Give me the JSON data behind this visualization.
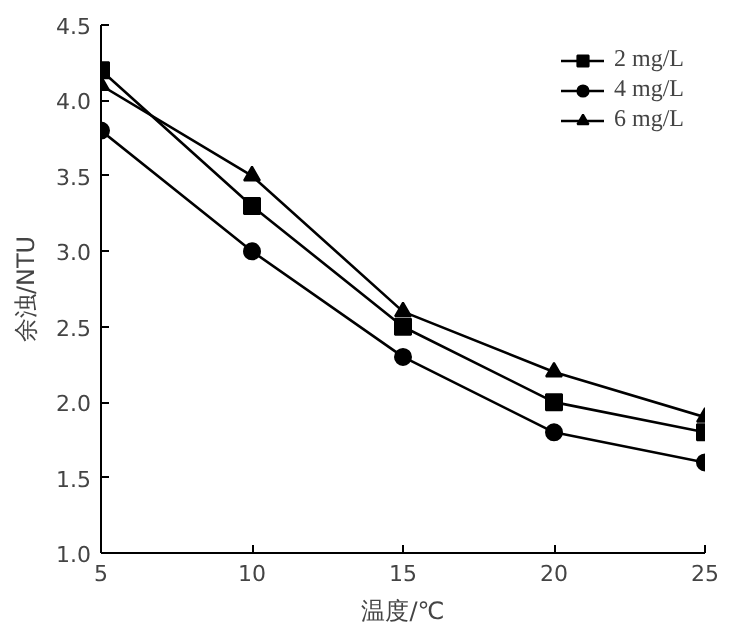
{
  "chart_data": {
    "type": "line",
    "xlabel": "温度/℃",
    "ylabel": "余浊/NTU",
    "x": [
      5,
      10,
      15,
      20,
      25
    ],
    "series": [
      {
        "name": "2 mg/L",
        "color": "#000000",
        "marker": "square",
        "values": [
          4.2,
          3.3,
          2.5,
          2.0,
          1.8
        ]
      },
      {
        "name": "4 mg/L",
        "color": "#000000",
        "marker": "circle",
        "values": [
          3.8,
          3.0,
          2.3,
          1.8,
          1.6
        ]
      },
      {
        "name": "6 mg/L",
        "color": "#000000",
        "marker": "triangle",
        "values": [
          4.1,
          3.5,
          2.6,
          2.2,
          1.9
        ]
      }
    ],
    "xlim": [
      5,
      25
    ],
    "xticks": [
      5,
      10,
      15,
      20,
      25
    ],
    "ylim": [
      1.0,
      4.5
    ],
    "yticks": [
      {
        "value": 1.0,
        "label": "1.0"
      },
      {
        "value": 1.5,
        "label": "1.5"
      },
      {
        "value": 2.0,
        "label": "2.0"
      },
      {
        "value": 2.5,
        "label": "2.5"
      },
      {
        "value": 3.0,
        "label": "3.0"
      },
      {
        "value": 3.5,
        "label": "3.5"
      },
      {
        "value": 4.0,
        "label": "4.0"
      },
      {
        "value": 4.5,
        "label": "4.5"
      }
    ],
    "grid": false,
    "legend": "top right",
    "line_style": "solid"
  }
}
